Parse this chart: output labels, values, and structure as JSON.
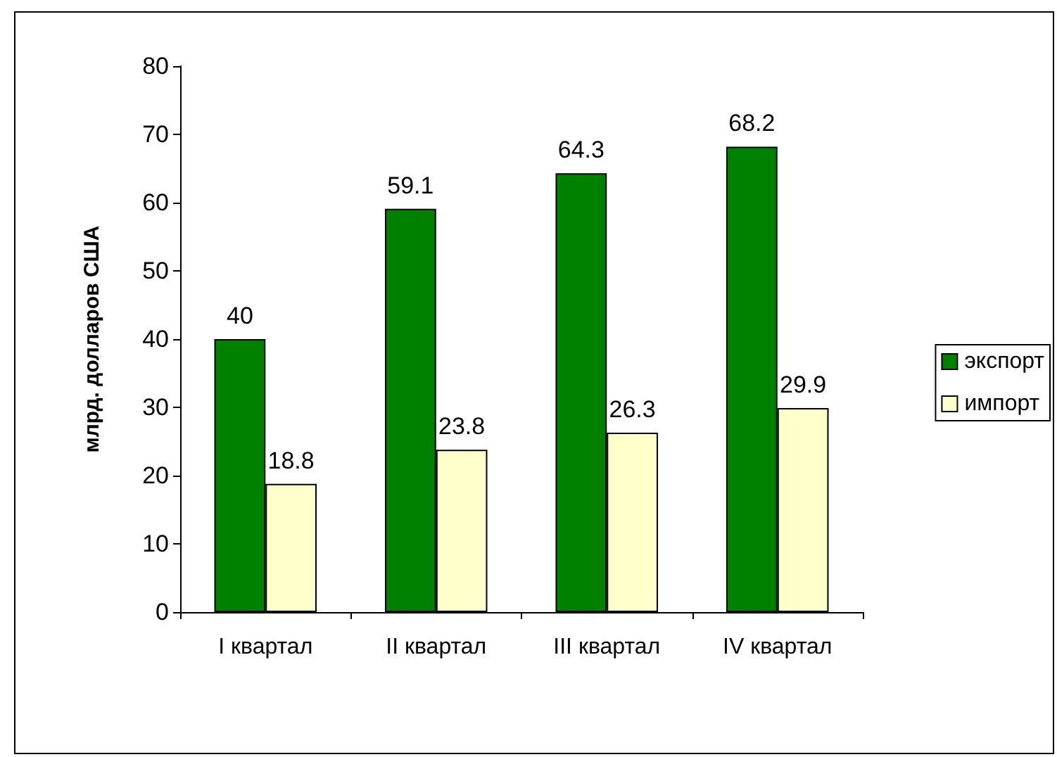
{
  "chart_data": {
    "type": "bar",
    "ylabel": "млрд. долларов США",
    "categories": [
      "I квартал",
      "II квартал",
      "III квартал",
      "IV квартал"
    ],
    "series": [
      {
        "name": "экспорт",
        "color": "#008000",
        "values": [
          40,
          59.1,
          64.3,
          68.2
        ]
      },
      {
        "name": "импорт",
        "color": "#ffffcc",
        "values": [
          18.8,
          23.8,
          26.3,
          29.9
        ]
      }
    ],
    "ylim": [
      0,
      80
    ],
    "yticks": [
      0,
      10,
      20,
      30,
      40,
      50,
      60,
      70,
      80
    ],
    "grid": false,
    "legend": "right",
    "data_labels": true
  }
}
